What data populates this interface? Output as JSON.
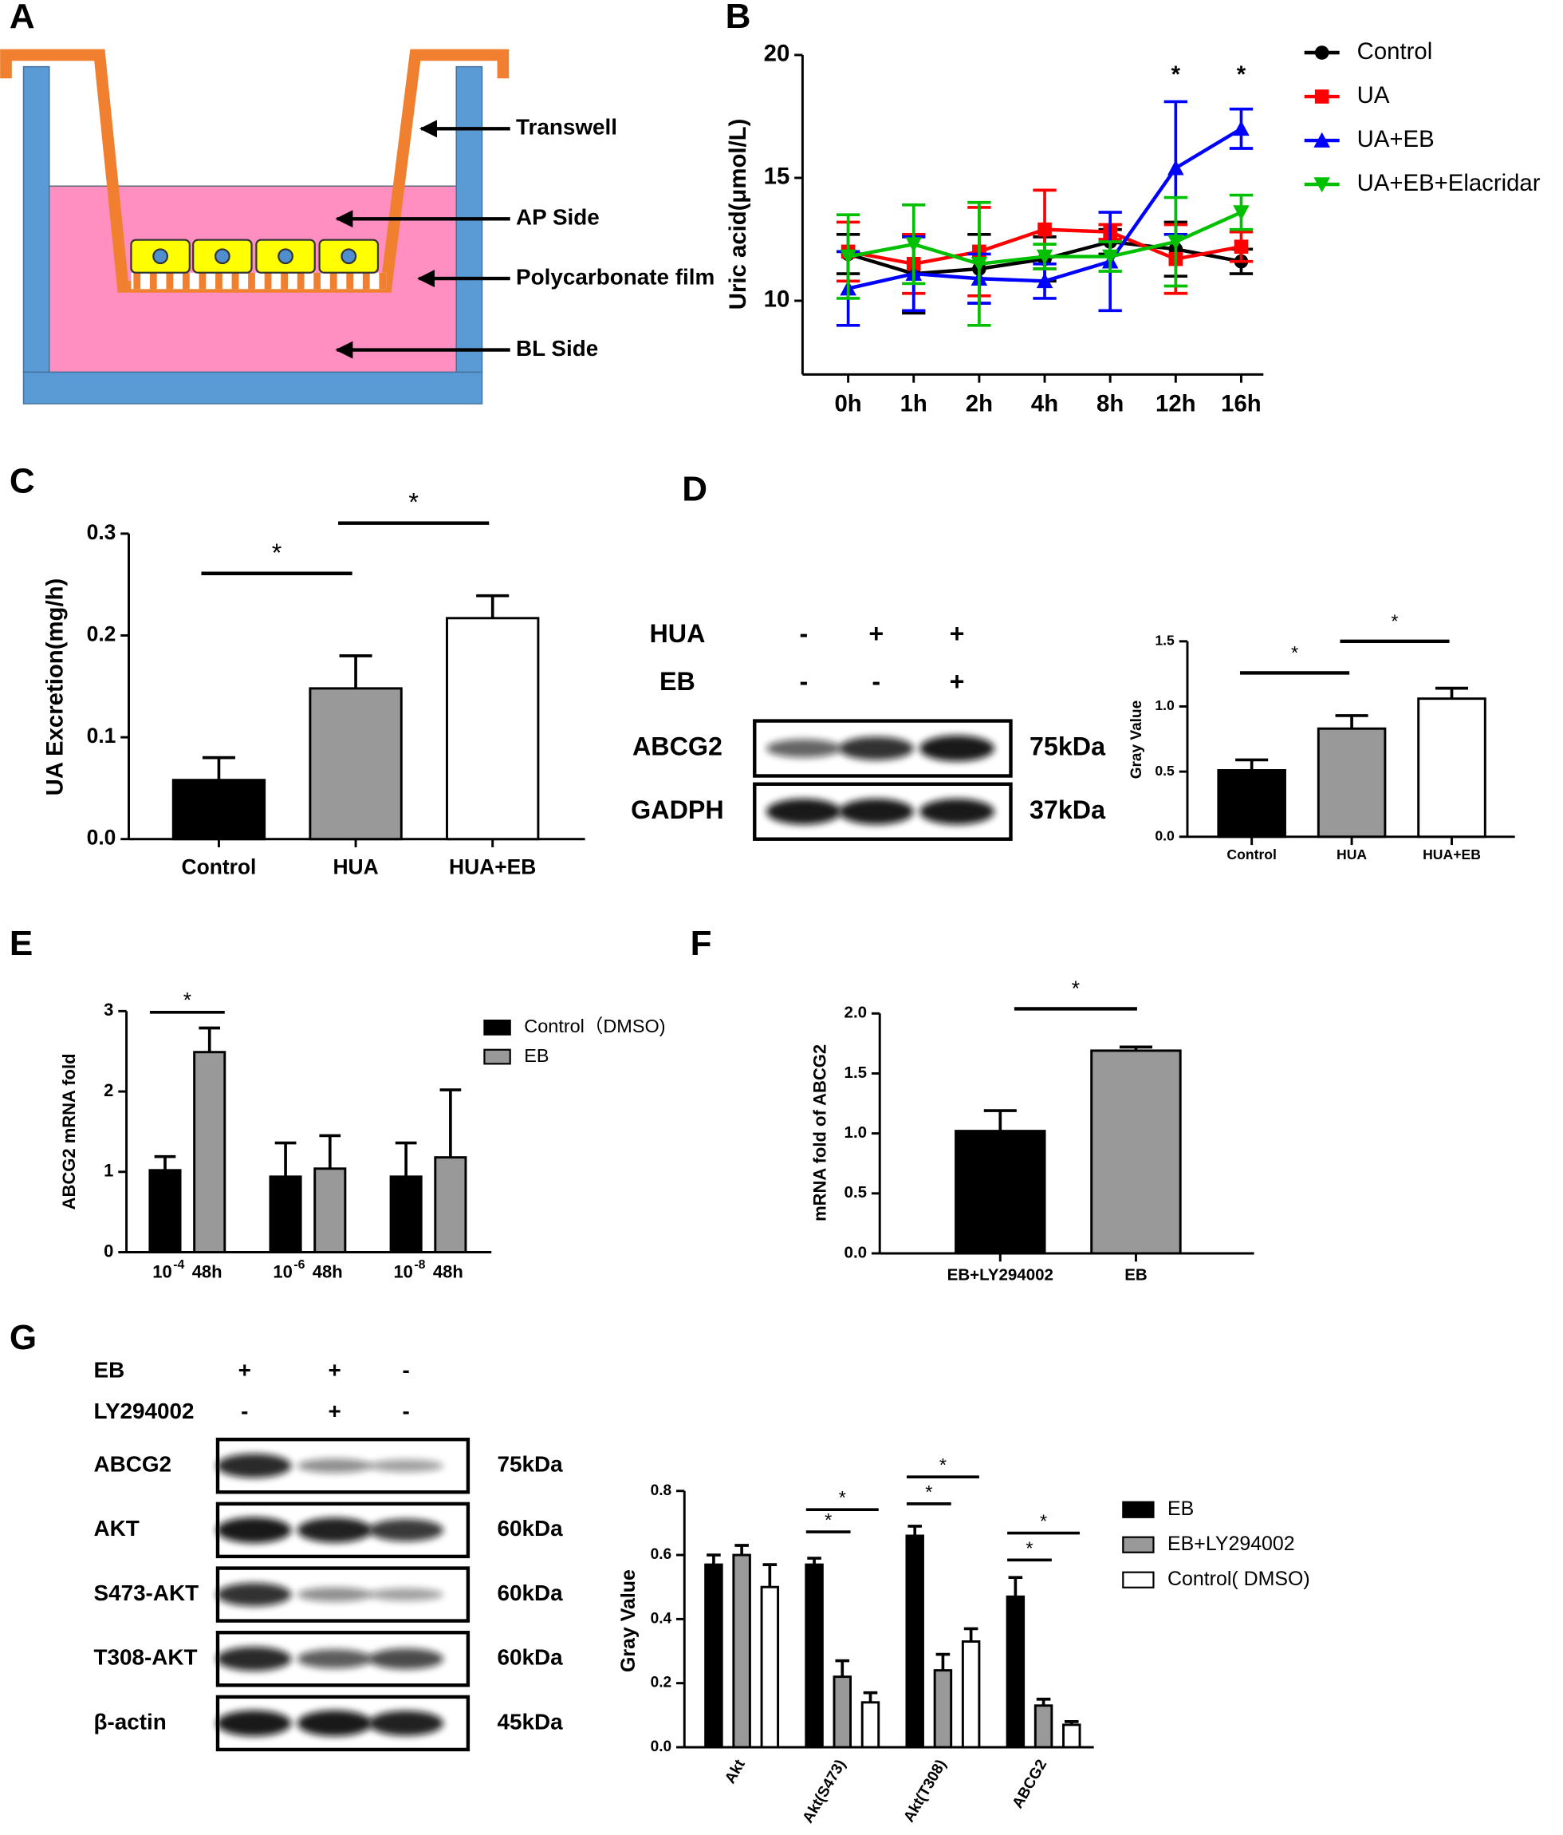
{
  "panel_labels": [
    "A",
    "B",
    "C",
    "D",
    "E",
    "F",
    "G"
  ],
  "diagram": {
    "labels": [
      "Transwell",
      "AP Side",
      "Polycarbonate film",
      "BL Side"
    ]
  },
  "blots": [
    {
      "conditions": [
        {
          "name": "HUA",
          "lanes": [
            "-",
            "+",
            "+"
          ]
        },
        {
          "name": "EB",
          "lanes": [
            "-",
            "-",
            "+"
          ]
        }
      ],
      "rows": [
        {
          "protein": "ABCG2",
          "size": "75kDa"
        },
        {
          "protein": "GADPH",
          "size": "37kDa"
        }
      ]
    },
    {
      "conditions": [
        {
          "name": "EB",
          "lanes": [
            "+",
            "+",
            "-"
          ]
        },
        {
          "name": "LY294002",
          "lanes": [
            "-",
            "+",
            "-"
          ]
        }
      ],
      "rows": [
        {
          "protein": "ABCG2",
          "size": "75kDa"
        },
        {
          "protein": "AKT",
          "size": "60kDa"
        },
        {
          "protein": "S473-AKT",
          "size": "60kDa"
        },
        {
          "protein": "T308-AKT",
          "size": "60kDa"
        },
        {
          "protein": "β-actin",
          "size": "45kDa"
        }
      ]
    }
  ],
  "chart_data": [
    {
      "type": "line",
      "ylabel": "Uric acid(μmol/L)",
      "categories": [
        "0h",
        "1h",
        "2h",
        "4h",
        "8h",
        "12h",
        "16h"
      ],
      "ylim": [
        7,
        20
      ],
      "yticks": [
        10,
        15,
        20
      ],
      "series": [
        {
          "name": "Control",
          "color": "#000000",
          "marker": "circle",
          "values": [
            11.9,
            11.1,
            11.3,
            11.7,
            12.4,
            12.1,
            11.6
          ],
          "errors": [
            0.8,
            1.6,
            1.4,
            0.9,
            0.5,
            1.1,
            0.5
          ]
        },
        {
          "name": "UA",
          "color": "#ff0000",
          "marker": "square",
          "values": [
            12.0,
            11.5,
            12.0,
            12.9,
            12.8,
            11.7,
            12.2
          ],
          "errors": [
            1.2,
            1.2,
            1.8,
            1.6,
            0.3,
            1.4,
            0.6
          ]
        },
        {
          "name": "UA+EB",
          "color": "#0000ff",
          "marker": "triangle-up",
          "values": [
            10.5,
            11.1,
            10.9,
            10.8,
            11.6,
            15.4,
            17.0
          ],
          "errors": [
            1.5,
            1.5,
            1.0,
            0.7,
            2.0,
            2.7,
            0.8
          ]
        },
        {
          "name": "UA+EB+Elacridar",
          "color": "#00c000",
          "marker": "triangle-down",
          "values": [
            11.8,
            12.3,
            11.5,
            11.8,
            11.8,
            12.4,
            13.6
          ],
          "errors": [
            1.7,
            1.6,
            2.5,
            0.5,
            0.6,
            1.8,
            0.7
          ]
        }
      ],
      "annotations": [
        {
          "text": "*",
          "at": "12h"
        },
        {
          "text": "*",
          "at": "16h"
        }
      ]
    },
    {
      "type": "bar",
      "ylabel": "UA Excretion(mg/h)",
      "categories": [
        "Control",
        "HUA",
        "HUA+EB"
      ],
      "values": [
        0.058,
        0.148,
        0.217
      ],
      "errors": [
        0.022,
        0.032,
        0.022
      ],
      "colors": [
        "#000000",
        "#999999",
        "#ffffff"
      ],
      "ylim": [
        0,
        0.3
      ],
      "yticks": [
        {
          "value": 0,
          "label": "0.0"
        },
        0.1,
        0.2,
        0.3
      ],
      "annotations": [
        {
          "text": "*",
          "between": [
            "Control",
            "HUA"
          ]
        },
        {
          "text": "*",
          "between": [
            "HUA",
            "HUA+EB"
          ]
        }
      ]
    },
    {
      "type": "bar",
      "ylabel": "Gray Value",
      "categories": [
        "Control",
        "HUA",
        "HUA+EB"
      ],
      "values": [
        0.51,
        0.83,
        1.06
      ],
      "errors": [
        0.08,
        0.1,
        0.08
      ],
      "colors": [
        "#000000",
        "#999999",
        "#ffffff"
      ],
      "ylim": [
        0,
        1.5
      ],
      "yticks": [
        {
          "value": 0,
          "label": "0.0"
        },
        0.5,
        {
          "value": 1,
          "label": "1.0"
        },
        1.5
      ],
      "annotations": [
        {
          "text": "*",
          "between": [
            "Control",
            "HUA"
          ]
        },
        {
          "text": "*",
          "between": [
            "HUA",
            "HUA+EB"
          ]
        }
      ]
    },
    {
      "type": "bar",
      "ylabel": "ABCG2 mRNA fold",
      "categories": [
        {
          "base": "10",
          "exponent": "-4",
          "time": "48h"
        },
        {
          "base": "10",
          "exponent": "-6",
          "time": "48h"
        },
        {
          "base": "10",
          "exponent": "-8",
          "time": "48h"
        }
      ],
      "ylim": [
        0,
        3
      ],
      "yticks": [
        0,
        1,
        2,
        3
      ],
      "series": [
        {
          "name": "Control（DMSO)",
          "color": "#000000",
          "values": [
            1.02,
            0.94,
            0.94
          ],
          "errors": [
            0.17,
            0.42,
            0.42
          ]
        },
        {
          "name": "EB",
          "color": "#999999",
          "values": [
            2.49,
            1.04,
            1.18
          ],
          "errors": [
            0.3,
            0.41,
            0.84
          ]
        }
      ],
      "annotations": [
        {
          "text": "*",
          "category": 0,
          "between": [
            "Control（DMSO)",
            "EB"
          ]
        }
      ]
    },
    {
      "type": "bar",
      "ylabel": "mRNA fold of ABCG2",
      "categories": [
        "EB+LY294002",
        "EB"
      ],
      "values": [
        1.02,
        1.69
      ],
      "errors": [
        0.17,
        0.03
      ],
      "colors": [
        "#000000",
        "#999999"
      ],
      "ylim": [
        0,
        2
      ],
      "yticks": [
        {
          "value": 0,
          "label": "0.0"
        },
        0.5,
        {
          "value": 1,
          "label": "1.0"
        },
        1.5,
        {
          "value": 2,
          "label": "2.0"
        }
      ],
      "annotations": [
        {
          "text": "*",
          "between": [
            "EB+LY294002",
            "EB"
          ]
        }
      ]
    },
    {
      "type": "bar",
      "ylabel": "Gray Value",
      "categories": [
        "Akt",
        "Akt(S473)",
        "Akt(T308)",
        "ABCG2"
      ],
      "ylim": [
        0,
        0.8
      ],
      "yticks": [
        {
          "value": 0,
          "label": "0.0"
        },
        0.2,
        0.4,
        0.6,
        0.8
      ],
      "series": [
        {
          "name": "EB",
          "color": "#000000",
          "values": [
            0.57,
            0.57,
            0.66,
            0.47
          ],
          "errors": [
            0.03,
            0.02,
            0.03,
            0.06
          ]
        },
        {
          "name": "EB+LY294002",
          "color": "#999999",
          "values": [
            0.6,
            0.22,
            0.24,
            0.13
          ],
          "errors": [
            0.03,
            0.05,
            0.05,
            0.02
          ]
        },
        {
          "name": "Control( DMSO)",
          "color": "#ffffff",
          "values": [
            0.5,
            0.14,
            0.33,
            0.07
          ],
          "errors": [
            0.07,
            0.03,
            0.04,
            0.01
          ]
        }
      ],
      "annotations": [
        {
          "text": "*",
          "category": 1,
          "between": [
            "EB",
            "EB+LY294002"
          ]
        },
        {
          "text": "*",
          "category": 1,
          "between": [
            "EB",
            "Control( DMSO)"
          ]
        },
        {
          "text": "*",
          "category": 2,
          "between": [
            "EB",
            "EB+LY294002"
          ]
        },
        {
          "text": "*",
          "category": 2,
          "between": [
            "EB",
            "Control( DMSO)"
          ]
        },
        {
          "text": "*",
          "category": 3,
          "between": [
            "EB",
            "EB+LY294002"
          ]
        },
        {
          "text": "*",
          "category": 3,
          "between": [
            "EB",
            "Control( DMSO)"
          ]
        }
      ]
    }
  ]
}
